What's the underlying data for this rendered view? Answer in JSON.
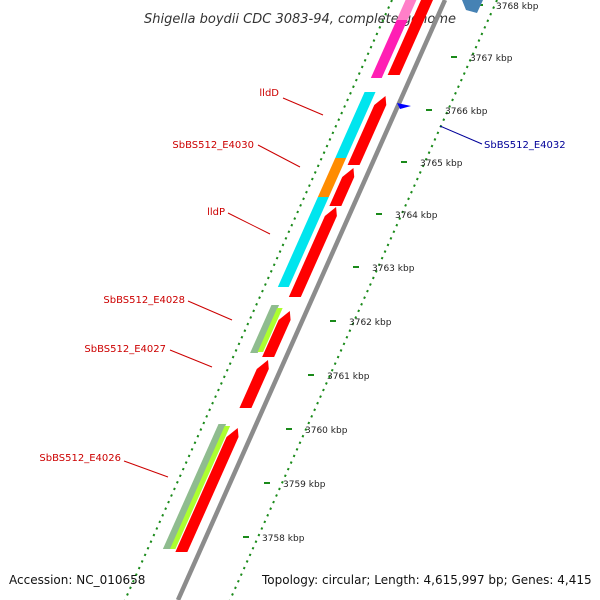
{
  "title": "Shigella boydii CDC 3083-94, complete genome",
  "accession": "Accession: NC_010658",
  "topology": "Topology: circular; Length: 4,615,997 bp; Genes: 4,415",
  "colors": {
    "backbone": "#8c8c8c",
    "forward_gene": "#ff0000",
    "tick": "#1a8a1a",
    "label_red": "#cc0000",
    "label_blue": "#000099",
    "cyan": "#00e5ee",
    "orange": "#ff8c00",
    "magenta": "#ff1fb4",
    "pink": "#ff7fc8",
    "sage": "#8fbc8f",
    "lime": "#adff2f",
    "steel": "#4682b4",
    "blue": "#0000ff"
  },
  "scale": {
    "unit": "kbp",
    "ticks": [
      "3758 kbp",
      "3759 kbp",
      "3760 kbp",
      "3761 kbp",
      "3762 kbp",
      "3763 kbp",
      "3764 kbp",
      "3765 kbp",
      "3766 kbp",
      "3767 kbp",
      "3768 kbp"
    ]
  },
  "gene_labels": {
    "lldD": "lldD",
    "e4030": "SbBS512_E4030",
    "lldP": "lldP",
    "e4028": "SbBS512_E4028",
    "e4027": "SbBS512_E4027",
    "e4026": "SbBS512_E4026",
    "e4032": "SbBS512_E4032"
  }
}
